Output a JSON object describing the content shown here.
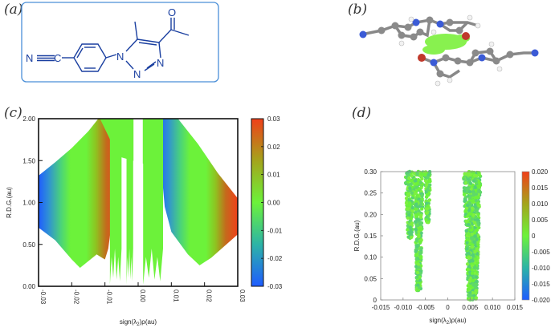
{
  "panels": {
    "a": {
      "label": "(a)"
    },
    "b": {
      "label": "(b)"
    },
    "c": {
      "label": "(c)"
    },
    "d": {
      "label": "(d)"
    }
  },
  "molecule_a": {
    "atoms": {
      "n_nitrile": "N",
      "n1": "N",
      "n2": "N",
      "n3": "N",
      "o": "O"
    },
    "line_color": "#1a3fa0",
    "frame_color": "#4a8fd8"
  },
  "chart_data": [
    {
      "id": "c",
      "type": "scatter",
      "xlabel_parts": [
        "sign(λ",
        "2",
        ")ρ(au)"
      ],
      "ylabel": "R.D.G.(au)",
      "xlim": [
        -0.03,
        0.03
      ],
      "ylim": [
        0.0,
        2.0
      ],
      "xticks": [
        "-0.03",
        "-0.02",
        "-0.01",
        "0.00",
        "0.01",
        "0.02",
        "0.03"
      ],
      "xtick_values": [
        -0.03,
        -0.02,
        -0.01,
        0.0,
        0.01,
        0.02,
        0.03
      ],
      "yticks": [
        "0.00",
        "0.50",
        "1.00",
        "1.50",
        "2.00"
      ],
      "ytick_values": [
        0.0,
        0.5,
        1.0,
        1.5,
        2.0
      ],
      "colorbar": {
        "range": [
          -0.03,
          0.03
        ],
        "ticks": [
          "0.03",
          "0.02",
          "0.01",
          "0.00",
          "-0.01",
          "-0.02",
          "-0.03"
        ],
        "tick_values": [
          0.03,
          0.02,
          0.01,
          0.0,
          -0.01,
          -0.02,
          -0.03
        ]
      },
      "colors": {
        "blue": "#1f5cff",
        "green": "#6cf23a",
        "red": "#f0401a"
      },
      "lower_envelope": [
        [
          -0.03,
          0.7
        ],
        [
          -0.025,
          0.55
        ],
        [
          -0.02,
          0.32
        ],
        [
          -0.0175,
          0.22
        ],
        [
          -0.015,
          0.3
        ],
        [
          -0.0125,
          0.38
        ],
        [
          -0.01,
          0.32
        ],
        [
          -0.009,
          0.45
        ],
        [
          -0.008,
          0.75
        ],
        [
          -0.007,
          1.4
        ],
        [
          -0.006,
          2.0
        ]
      ],
      "upper_envelope": [
        [
          -0.03,
          1.32
        ],
        [
          -0.025,
          1.48
        ],
        [
          -0.02,
          1.65
        ],
        [
          -0.015,
          1.85
        ],
        [
          -0.012,
          2.0
        ]
      ],
      "right_lower_envelope": [
        [
          0.006,
          2.0
        ],
        [
          0.007,
          1.4
        ],
        [
          0.008,
          0.95
        ],
        [
          0.01,
          0.65
        ],
        [
          0.015,
          0.38
        ],
        [
          0.0185,
          0.25
        ],
        [
          0.022,
          0.34
        ],
        [
          0.026,
          0.48
        ],
        [
          0.03,
          0.62
        ]
      ],
      "right_upper_envelope": [
        [
          0.012,
          2.0
        ],
        [
          0.018,
          1.7
        ],
        [
          0.024,
          1.35
        ],
        [
          0.03,
          1.05
        ]
      ],
      "spikes": [
        [
          -0.0085,
          -0.005
        ],
        [
          -0.0035,
          -0.0015
        ],
        [
          0.0015,
          0.0075
        ]
      ]
    },
    {
      "id": "d",
      "type": "scatter",
      "xlabel_parts": [
        "sign(λ",
        "2",
        ")ρ(au)"
      ],
      "ylabel": "R.D.G.(au)",
      "xlim": [
        -0.015,
        0.015
      ],
      "ylim": [
        0.0,
        0.3
      ],
      "xticks": [
        "-0.015",
        "-0.010",
        "-0.005",
        "0",
        "0.005",
        "0.010",
        "0.015"
      ],
      "xtick_values": [
        -0.015,
        -0.01,
        -0.005,
        0.0,
        0.005,
        0.01,
        0.015
      ],
      "yticks": [
        "0",
        "0.05",
        "0.10",
        "0.15",
        "0.20",
        "0.25",
        "0.30"
      ],
      "ytick_values": [
        0.0,
        0.05,
        0.1,
        0.15,
        0.2,
        0.25,
        0.3
      ],
      "colorbar": {
        "range": [
          -0.02,
          0.02
        ],
        "ticks": [
          "0.020",
          "0.015",
          "0.010",
          "0.005",
          "0",
          "-0.005",
          "-0.010",
          "-0.015",
          "-0.020"
        ],
        "tick_values": [
          0.02,
          0.015,
          0.01,
          0.005,
          0.0,
          -0.005,
          -0.01,
          -0.015,
          -0.02
        ]
      },
      "bands": [
        {
          "x": [
            -0.0095,
            -0.0075
          ],
          "ybottom": 0.14
        },
        {
          "x": [
            -0.0075,
            -0.0055
          ],
          "ybottom": 0.02
        },
        {
          "x": [
            -0.0052,
            -0.0038
          ],
          "ybottom": 0.18
        },
        {
          "x": [
            0.0035,
            0.0075
          ],
          "ybottom": 0.0
        }
      ]
    }
  ]
}
